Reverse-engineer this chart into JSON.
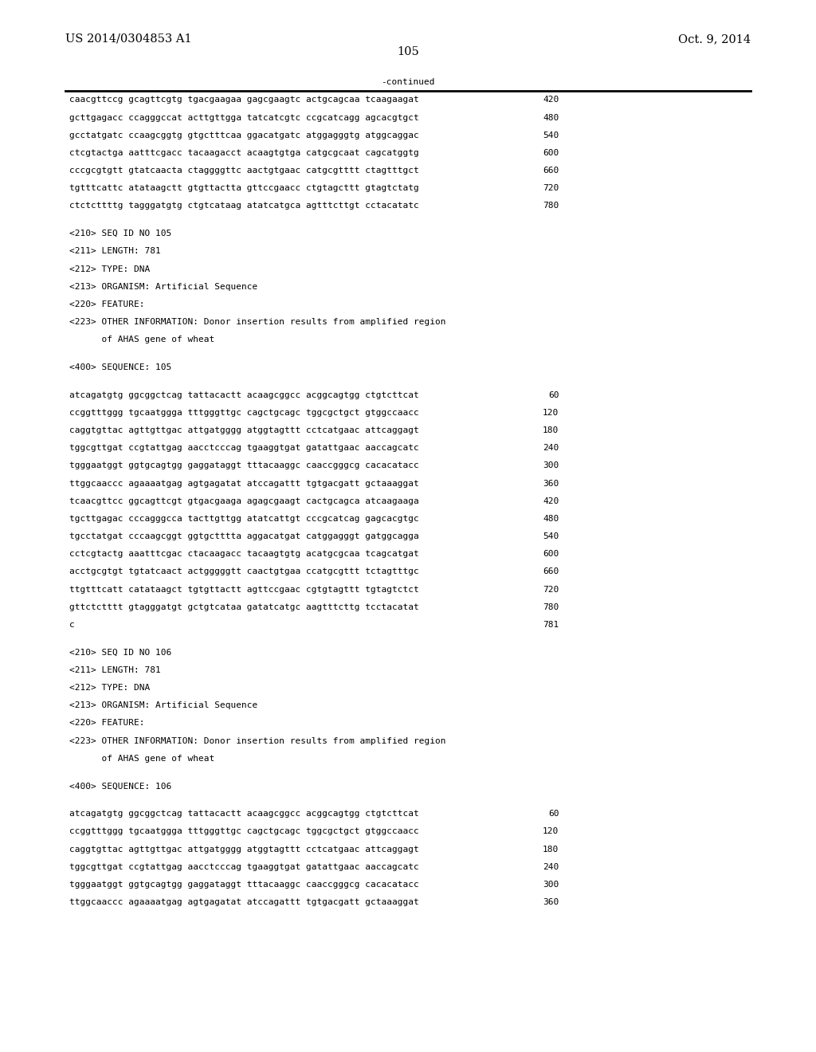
{
  "header_left": "US 2014/0304853 A1",
  "header_right": "Oct. 9, 2014",
  "page_number": "105",
  "continued_label": "-continued",
  "background_color": "#ffffff",
  "text_color": "#000000",
  "font_size_header": 10.5,
  "font_size_body": 8.0,
  "font_size_page": 10.5,
  "lines": [
    {
      "text": "caacgttccg gcagttcgtg tgacgaagaa gagcgaagtc actgcagcaa tcaagaagat",
      "num": "420"
    },
    {
      "text": "gcttgagacc ccagggccat acttgttgga tatcatcgtc ccgcatcagg agcacgtgct",
      "num": "480"
    },
    {
      "text": "gcctatgatc ccaagcggtg gtgctttcaa ggacatgatc atggagggtg atggcaggac",
      "num": "540"
    },
    {
      "text": "ctcgtactga aatttcgacc tacaagacct acaagtgtga catgcgcaat cagcatggtg",
      "num": "600"
    },
    {
      "text": "cccgcgtgtt gtatcaacta ctaggggttc aactgtgaac catgcgtttt ctagtttgct",
      "num": "660"
    },
    {
      "text": "tgtttcattc atataagctt gtgttactta gttccgaacc ctgtagcttt gtagtctatg",
      "num": "720"
    },
    {
      "text": "ctctcttttg tagggatgtg ctgtcataag atatcatgca agtttcttgt cctacatatc",
      "num": "780"
    },
    {
      "text": "",
      "num": "",
      "type": "blank"
    },
    {
      "text": "<210> SEQ ID NO 105",
      "num": "",
      "type": "meta"
    },
    {
      "text": "<211> LENGTH: 781",
      "num": "",
      "type": "meta"
    },
    {
      "text": "<212> TYPE: DNA",
      "num": "",
      "type": "meta"
    },
    {
      "text": "<213> ORGANISM: Artificial Sequence",
      "num": "",
      "type": "meta"
    },
    {
      "text": "<220> FEATURE:",
      "num": "",
      "type": "meta"
    },
    {
      "text": "<223> OTHER INFORMATION: Donor insertion results from amplified region",
      "num": "",
      "type": "meta"
    },
    {
      "text": "      of AHAS gene of wheat",
      "num": "",
      "type": "meta"
    },
    {
      "text": "",
      "num": "",
      "type": "blank"
    },
    {
      "text": "<400> SEQUENCE: 105",
      "num": "",
      "type": "meta"
    },
    {
      "text": "",
      "num": "",
      "type": "blank"
    },
    {
      "text": "atcagatgtg ggcggctcag tattacactt acaagcggcc acggcagtgg ctgtcttcat",
      "num": "60"
    },
    {
      "text": "ccggtttggg tgcaatggga tttgggttgc cagctgcagc tggcgctgct gtggccaacc",
      "num": "120"
    },
    {
      "text": "caggtgttac agttgttgac attgatgggg atggtagttt cctcatgaac attcaggagt",
      "num": "180"
    },
    {
      "text": "tggcgttgat ccgtattgag aacctcccag tgaaggtgat gatattgaac aaccagcatc",
      "num": "240"
    },
    {
      "text": "tgggaatggt ggtgcagtgg gaggataggt tttacaaggc caaccgggcg cacacatacc",
      "num": "300"
    },
    {
      "text": "ttggcaaccc agaaaatgag agtgagatat atccagattt tgtgacgatt gctaaaggat",
      "num": "360"
    },
    {
      "text": "tcaacgttcc ggcagttcgt gtgacgaaga agagcgaagt cactgcagca atcaagaaga",
      "num": "420"
    },
    {
      "text": "tgcttgagac cccagggcca tacttgttgg atatcattgt cccgcatcag gagcacgtgc",
      "num": "480"
    },
    {
      "text": "tgcctatgat cccaagcggt ggtgctttta aggacatgat catggagggt gatggcagga",
      "num": "540"
    },
    {
      "text": "cctcgtactg aaatttcgac ctacaagacc tacaagtgtg acatgcgcaa tcagcatgat",
      "num": "600"
    },
    {
      "text": "acctgcgtgt tgtatcaact actgggggtt caactgtgaa ccatgcgttt tctagtttgc",
      "num": "660"
    },
    {
      "text": "ttgtttcatt catataagct tgtgttactt agttccgaac cgtgtagttt tgtagtctct",
      "num": "720"
    },
    {
      "text": "gttctctttt gtagggatgt gctgtcataa gatatcatgc aagtttcttg tcctacatat",
      "num": "780"
    },
    {
      "text": "c",
      "num": "781"
    },
    {
      "text": "",
      "num": "",
      "type": "blank"
    },
    {
      "text": "<210> SEQ ID NO 106",
      "num": "",
      "type": "meta"
    },
    {
      "text": "<211> LENGTH: 781",
      "num": "",
      "type": "meta"
    },
    {
      "text": "<212> TYPE: DNA",
      "num": "",
      "type": "meta"
    },
    {
      "text": "<213> ORGANISM: Artificial Sequence",
      "num": "",
      "type": "meta"
    },
    {
      "text": "<220> FEATURE:",
      "num": "",
      "type": "meta"
    },
    {
      "text": "<223> OTHER INFORMATION: Donor insertion results from amplified region",
      "num": "",
      "type": "meta"
    },
    {
      "text": "      of AHAS gene of wheat",
      "num": "",
      "type": "meta"
    },
    {
      "text": "",
      "num": "",
      "type": "blank"
    },
    {
      "text": "<400> SEQUENCE: 106",
      "num": "",
      "type": "meta"
    },
    {
      "text": "",
      "num": "",
      "type": "blank"
    },
    {
      "text": "atcagatgtg ggcggctcag tattacactt acaagcggcc acggcagtgg ctgtcttcat",
      "num": "60"
    },
    {
      "text": "ccggtttggg tgcaatggga tttgggttgc cagctgcagc tggcgctgct gtggccaacc",
      "num": "120"
    },
    {
      "text": "caggtgttac agttgttgac attgatgggg atggtagttt cctcatgaac attcaggagt",
      "num": "180"
    },
    {
      "text": "tggcgttgat ccgtattgag aacctcccag tgaaggtgat gatattgaac aaccagcatc",
      "num": "240"
    },
    {
      "text": "tgggaatggt ggtgcagtgg gaggataggt tttacaaggc caaccgggcg cacacatacc",
      "num": "300"
    },
    {
      "text": "ttggcaaccc agaaaatgag agtgagatat atccagattt tgtgacgatt gctaaaggat",
      "num": "360"
    }
  ]
}
